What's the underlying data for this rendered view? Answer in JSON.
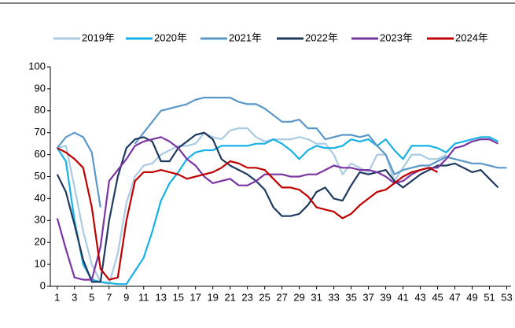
{
  "chart_data": {
    "type": "line",
    "x": [
      1,
      2,
      3,
      4,
      5,
      6,
      7,
      8,
      9,
      10,
      11,
      12,
      13,
      14,
      15,
      16,
      17,
      18,
      19,
      20,
      21,
      22,
      23,
      24,
      25,
      26,
      27,
      28,
      29,
      30,
      31,
      32,
      33,
      34,
      35,
      36,
      37,
      38,
      39,
      40,
      41,
      42,
      43,
      44,
      45,
      46,
      47,
      48,
      49,
      50,
      51,
      52,
      53
    ],
    "xlim": [
      0.2,
      53.5
    ],
    "xticks": [
      1,
      3,
      5,
      7,
      9,
      11,
      13,
      15,
      17,
      19,
      21,
      23,
      25,
      27,
      29,
      31,
      33,
      35,
      37,
      39,
      41,
      43,
      45,
      47,
      49,
      51,
      53
    ],
    "ylim": [
      0,
      100
    ],
    "yticks": [
      0,
      10,
      20,
      30,
      40,
      50,
      60,
      70,
      80,
      90,
      100
    ],
    "series": [
      {
        "name": "2019年",
        "color": "#a9cbe3",
        "values": [
          63,
          64,
          45,
          25,
          10,
          2,
          1,
          15,
          38,
          50,
          55,
          56,
          60,
          62,
          64,
          64,
          65,
          70,
          68,
          67,
          71,
          72,
          72,
          68,
          66,
          67,
          67,
          67,
          68,
          67,
          65,
          65,
          60,
          51,
          56,
          54,
          52,
          60,
          60,
          48,
          54,
          60,
          60,
          58,
          58,
          60,
          null,
          null,
          null,
          null,
          null,
          null,
          null
        ]
      },
      {
        "name": "2020年",
        "color": "#16b1e6",
        "values": [
          63,
          57,
          30,
          10,
          3,
          2,
          1.5,
          1,
          1,
          7,
          13,
          25,
          39,
          47,
          52,
          58,
          61,
          62,
          62,
          64,
          64,
          64,
          64,
          65,
          65,
          67,
          65,
          62,
          58,
          62,
          64,
          63,
          63,
          64,
          67,
          66,
          67,
          64,
          67,
          62,
          58,
          64,
          64,
          64,
          63,
          61,
          65,
          66,
          67,
          68,
          68,
          66,
          null
        ]
      },
      {
        "name": "2021年",
        "color": "#5b98c9",
        "values": [
          63,
          68,
          70,
          68,
          61,
          36,
          null,
          null,
          null,
          65,
          70,
          75,
          80,
          81,
          82,
          83,
          85,
          86,
          86,
          86,
          86,
          84,
          83,
          83,
          81,
          78,
          75,
          75,
          76,
          72,
          72,
          67,
          68,
          69,
          69,
          68,
          69,
          64,
          60,
          51,
          53,
          54,
          55,
          55,
          57,
          59,
          58,
          57,
          56,
          56,
          55,
          54,
          54
        ]
      },
      {
        "name": "2022年",
        "color": "#1f3a5f",
        "values": [
          51,
          43,
          28,
          12,
          2,
          2,
          30,
          50,
          63,
          67,
          68,
          66,
          57,
          57,
          63,
          66,
          69,
          70,
          67,
          58,
          55,
          53,
          51,
          48,
          44,
          36,
          32,
          32,
          33,
          37,
          43,
          45,
          40,
          39,
          46,
          52,
          51,
          52,
          53,
          48,
          45,
          48,
          51,
          53,
          55,
          55,
          56,
          54,
          52,
          53,
          49,
          45,
          null
        ]
      },
      {
        "name": "2023年",
        "color": "#7b35a3",
        "values": [
          31,
          17,
          4,
          3,
          3,
          18,
          48,
          53,
          58,
          64,
          66,
          67,
          68,
          66,
          63,
          58,
          55,
          50,
          47,
          48,
          49,
          46,
          46,
          48,
          51,
          51,
          51,
          50,
          50,
          51,
          51,
          53,
          55,
          54,
          54,
          53,
          53,
          52,
          50,
          47,
          48,
          51,
          53,
          54,
          54,
          58,
          63,
          64,
          66,
          67,
          67,
          65,
          null
        ]
      },
      {
        "name": "2024年",
        "color": "#c00000",
        "values": [
          63,
          61,
          58,
          54,
          36,
          8,
          3,
          4,
          30,
          48,
          52,
          52,
          53,
          52,
          51,
          49,
          50,
          51,
          52,
          54,
          57,
          56,
          54,
          54,
          53,
          49,
          45,
          45,
          44,
          41,
          36,
          35,
          34,
          31,
          33,
          37,
          40,
          43,
          44,
          47,
          50,
          52,
          53,
          54,
          52,
          null,
          null,
          null,
          null,
          null,
          null,
          null,
          null
        ]
      }
    ]
  }
}
